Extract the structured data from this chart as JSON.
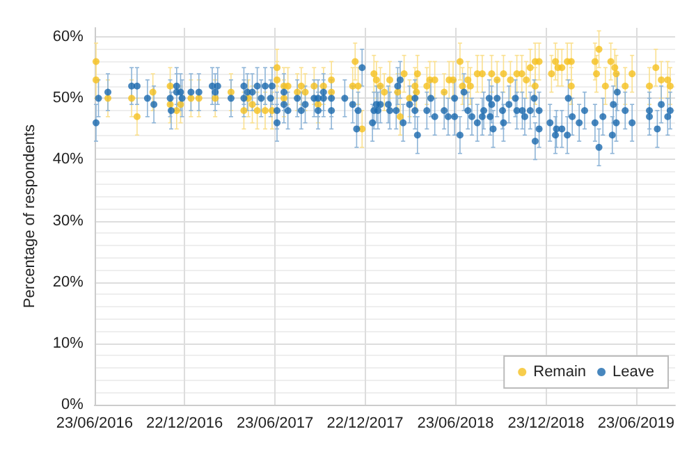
{
  "chart_data": {
    "type": "scatter",
    "ylabel": "Percentage of respondents",
    "xlim": [
      "2016-06-23",
      "2019-09-10"
    ],
    "xticks": [
      {
        "value": "2016-06-23",
        "label": "23/06/2016"
      },
      {
        "value": "2016-12-22",
        "label": "22/12/2016"
      },
      {
        "value": "2017-06-23",
        "label": "23/06/2017"
      },
      {
        "value": "2017-12-22",
        "label": "22/12/2017"
      },
      {
        "value": "2018-06-23",
        "label": "23/06/2018"
      },
      {
        "value": "2018-12-23",
        "label": "23/12/2018"
      },
      {
        "value": "2019-06-23",
        "label": "23/06/2019"
      }
    ],
    "ylim": [
      0,
      61.5
    ],
    "yticks": [
      {
        "value": 0,
        "label": "0%"
      },
      {
        "value": 10,
        "label": "10%"
      },
      {
        "value": 20,
        "label": "20%"
      },
      {
        "value": 30,
        "label": "30%"
      },
      {
        "value": 40,
        "label": "40%"
      },
      {
        "value": 50,
        "label": "50%"
      },
      {
        "value": 60,
        "label": "60%"
      }
    ],
    "grid": true,
    "legend": "bottom right",
    "marker": "circle",
    "series": [
      {
        "name": "Remain",
        "color": "#f5c01f",
        "x": [
          "2016-06-26",
          "2016-06-26",
          "2016-07-20",
          "2016-09-06",
          "2016-09-17",
          "2016-10-19",
          "2016-11-23",
          "2016-11-23",
          "2016-12-06",
          "2016-12-14",
          "2017-01-04",
          "2017-01-20",
          "2017-02-22",
          "2017-03-26",
          "2017-04-21",
          "2017-04-30",
          "2017-05-08",
          "2017-05-18",
          "2017-06-03",
          "2017-06-17",
          "2017-06-27",
          "2017-06-27",
          "2017-07-11",
          "2017-07-11",
          "2017-07-19",
          "2017-08-07",
          "2017-08-15",
          "2017-08-23",
          "2017-09-10",
          "2017-09-18",
          "2017-09-29",
          "2017-10-15",
          "2017-10-15",
          "2017-11-27",
          "2017-12-02",
          "2017-12-08",
          "2017-12-16",
          "2018-01-09",
          "2018-01-14",
          "2018-01-22",
          "2018-01-30",
          "2018-02-10",
          "2018-02-26",
          "2018-03-03",
          "2018-03-11",
          "2018-03-22",
          "2018-04-02",
          "2018-04-05",
          "2018-04-07",
          "2018-04-26",
          "2018-05-02",
          "2018-05-12",
          "2018-05-31",
          "2018-06-10",
          "2018-06-18",
          "2018-07-02",
          "2018-07-07",
          "2018-07-18",
          "2018-07-23",
          "2018-08-06",
          "2018-08-16",
          "2018-09-04",
          "2018-09-15",
          "2018-09-28",
          "2018-10-12",
          "2018-10-25",
          "2018-11-04",
          "2018-11-13",
          "2018-11-21",
          "2018-12-01",
          "2018-12-09",
          "2018-12-01",
          "2019-01-03",
          "2019-01-11",
          "2019-01-16",
          "2019-01-24",
          "2019-02-04",
          "2019-02-12",
          "2019-02-12",
          "2019-04-01",
          "2019-04-09",
          "2019-04-04",
          "2019-04-22",
          "2019-05-03",
          "2019-05-11",
          "2019-05-14",
          "2019-06-01",
          "2019-06-15",
          "2019-07-20",
          "2019-08-02",
          "2019-08-13",
          "2019-08-26",
          "2019-08-31"
        ],
        "values": [
          56,
          53,
          50,
          50,
          47,
          51,
          52,
          49,
          48,
          49,
          50,
          50,
          50,
          51,
          48,
          50,
          49,
          48,
          48,
          48,
          55,
          53,
          50,
          52,
          52,
          51,
          52,
          51,
          52,
          49,
          52,
          53,
          51,
          52,
          56,
          52,
          45,
          54,
          53,
          52,
          51,
          53,
          51,
          47,
          54,
          50,
          52,
          51,
          54,
          52,
          53,
          53,
          51,
          53,
          53,
          56,
          52,
          53,
          52,
          54,
          54,
          54,
          53,
          54,
          53,
          54,
          54,
          53,
          55,
          56,
          56,
          52,
          54,
          56,
          55,
          55,
          56,
          56,
          52,
          56,
          58,
          54,
          52,
          56,
          55,
          54,
          52,
          54,
          52,
          55,
          53,
          53,
          52
        ],
        "errors": [
          3,
          3,
          3,
          3,
          3,
          3,
          3,
          3,
          3,
          3,
          3,
          3,
          3,
          3,
          3,
          3,
          3,
          3,
          3,
          3,
          3,
          3,
          3,
          3,
          3,
          3,
          3,
          3,
          3,
          3,
          3,
          3,
          3,
          3,
          3,
          3,
          3,
          3,
          3,
          3,
          3,
          3,
          3,
          3,
          3,
          3,
          3,
          3,
          3,
          3,
          3,
          3,
          3,
          3,
          3,
          3,
          3,
          3,
          3,
          3,
          3,
          3,
          3,
          3,
          3,
          3,
          3,
          3,
          3,
          3,
          3,
          3,
          3,
          3,
          3,
          3,
          3,
          3,
          3,
          3,
          3,
          3,
          3,
          3,
          3,
          3,
          3,
          3,
          3,
          3,
          3,
          3,
          3
        ]
      },
      {
        "name": "Leave",
        "color": "#1a69ae",
        "x": [
          "2016-06-26",
          "2016-07-01",
          "2016-07-20",
          "2016-09-06",
          "2016-09-17",
          "2016-10-08",
          "2016-10-21",
          "2016-11-23",
          "2016-11-25",
          "2016-12-06",
          "2016-12-06",
          "2016-12-14",
          "2016-12-17",
          "2017-01-04",
          "2017-01-20",
          "2017-02-16",
          "2017-02-27",
          "2017-02-22",
          "2017-03-26",
          "2017-04-21",
          "2017-04-21",
          "2017-04-28",
          "2017-05-08",
          "2017-05-18",
          "2017-05-26",
          "2017-06-03",
          "2017-06-14",
          "2017-06-17",
          "2017-06-27",
          "2017-06-27",
          "2017-07-11",
          "2017-07-11",
          "2017-07-19",
          "2017-08-07",
          "2017-08-15",
          "2017-08-23",
          "2017-09-10",
          "2017-09-18",
          "2017-09-18",
          "2017-09-29",
          "2017-09-29",
          "2017-10-15",
          "2017-10-15",
          "2017-11-11",
          "2017-11-27",
          "2017-12-05",
          "2017-12-08",
          "2017-12-16",
          "2018-01-06",
          "2018-01-09",
          "2018-01-14",
          "2018-01-17",
          "2018-01-22",
          "2018-02-07",
          "2018-02-10",
          "2018-02-23",
          "2018-02-26",
          "2018-03-03",
          "2018-03-09",
          "2018-03-22",
          "2018-04-02",
          "2018-04-02",
          "2018-04-07",
          "2018-04-26",
          "2018-05-04",
          "2018-05-12",
          "2018-05-31",
          "2018-06-08",
          "2018-06-21",
          "2018-06-21",
          "2018-07-02",
          "2018-07-10",
          "2018-07-18",
          "2018-07-26",
          "2018-08-06",
          "2018-08-16",
          "2018-08-19",
          "2018-08-30",
          "2018-09-04",
          "2018-09-15",
          "2018-09-01",
          "2018-09-07",
          "2018-09-26",
          "2018-09-28",
          "2018-10-09",
          "2018-10-22",
          "2018-10-25",
          "2018-11-05",
          "2018-11-10",
          "2018-11-21",
          "2018-11-29",
          "2018-12-01",
          "2018-12-09",
          "2018-12-09",
          "2018-12-31",
          "2019-01-11",
          "2019-01-13",
          "2019-01-24",
          "2019-02-06",
          "2019-02-04",
          "2019-02-14",
          "2019-02-28",
          "2019-03-11",
          "2019-04-01",
          "2019-04-09",
          "2019-04-17",
          "2019-05-06",
          "2019-05-08",
          "2019-05-16",
          "2019-05-14",
          "2019-06-01",
          "2019-06-15",
          "2019-07-20",
          "2019-07-20",
          "2019-08-05",
          "2019-08-13",
          "2019-08-26",
          "2019-08-31"
        ],
        "values": [
          46,
          50,
          51,
          52,
          52,
          50,
          49,
          50,
          48,
          52,
          51,
          51,
          50,
          51,
          51,
          52,
          52,
          51,
          50,
          52,
          50,
          51,
          51,
          52,
          50,
          52,
          50,
          52,
          48,
          46,
          51,
          49,
          48,
          50,
          48,
          49,
          50,
          50,
          48,
          51,
          50,
          50,
          48,
          50,
          49,
          45,
          48,
          55,
          46,
          48,
          49,
          48,
          49,
          49,
          48,
          48,
          52,
          53,
          46,
          49,
          50,
          48,
          44,
          48,
          50,
          47,
          48,
          47,
          50,
          47,
          44,
          51,
          48,
          47,
          46,
          47,
          48,
          50,
          49,
          50,
          47,
          45,
          48,
          46,
          49,
          50,
          48,
          48,
          47,
          48,
          50,
          43,
          48,
          45,
          46,
          44,
          45,
          45,
          50,
          44,
          47,
          46,
          48,
          46,
          42,
          47,
          44,
          49,
          51,
          46,
          48,
          46,
          48,
          47,
          45,
          49,
          47,
          48
        ],
        "errors": [
          3,
          3,
          3,
          3,
          3,
          3,
          3,
          3,
          3,
          3,
          3,
          3,
          3,
          3,
          3,
          3,
          3,
          3,
          3,
          3,
          3,
          3,
          3,
          3,
          3,
          3,
          3,
          3,
          3,
          3,
          3,
          3,
          3,
          3,
          3,
          3,
          3,
          3,
          3,
          3,
          3,
          3,
          3,
          3,
          3,
          3,
          3,
          3,
          3,
          3,
          3,
          3,
          3,
          3,
          3,
          3,
          3,
          3,
          3,
          3,
          3,
          3,
          3,
          3,
          3,
          3,
          3,
          3,
          3,
          3,
          3,
          3,
          3,
          3,
          3,
          3,
          3,
          3,
          3,
          3,
          3,
          3,
          3,
          3,
          3,
          3,
          3,
          3,
          3,
          3,
          3,
          3,
          3,
          3,
          3,
          3,
          3,
          3,
          3,
          3,
          3,
          3,
          3,
          3,
          3,
          3,
          3,
          3,
          3,
          3,
          3,
          3,
          3,
          3,
          3,
          3,
          3,
          3
        ]
      }
    ]
  }
}
